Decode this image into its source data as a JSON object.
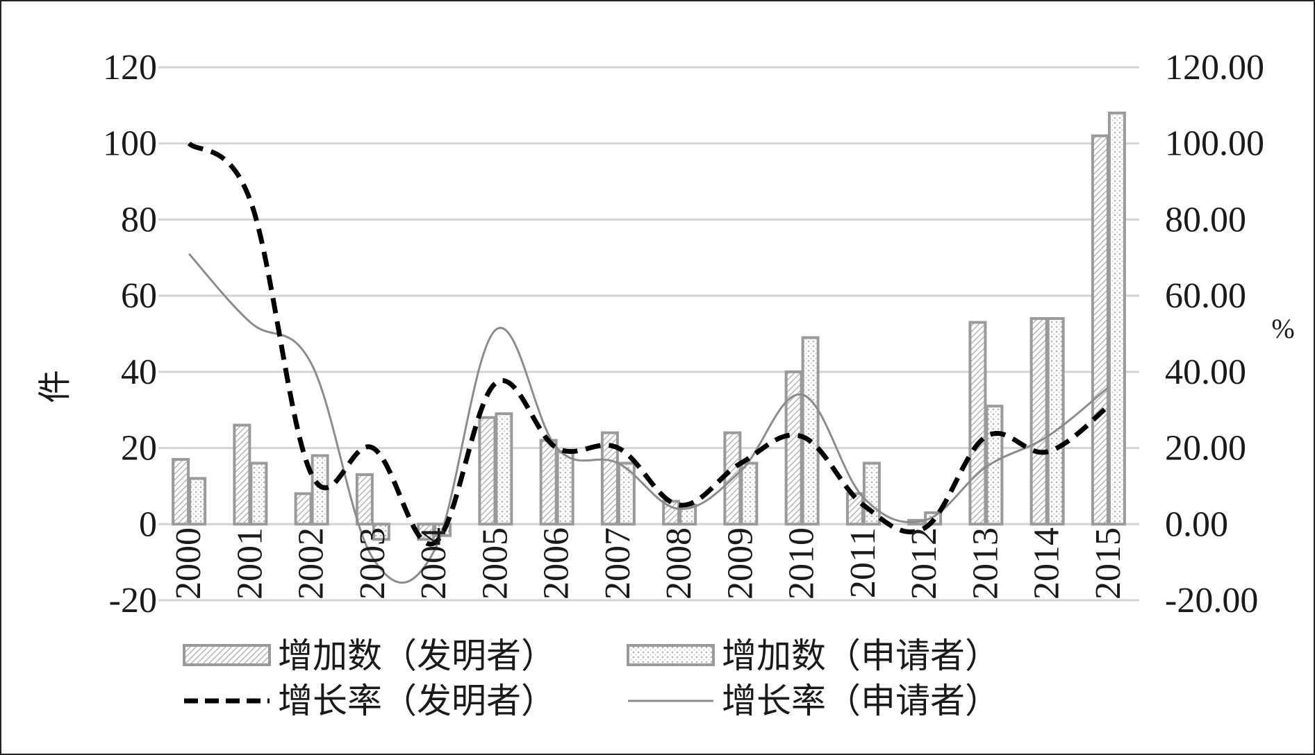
{
  "chart_data": {
    "type": "bar",
    "categories": [
      "2000",
      "2001",
      "2002",
      "2003",
      "2004",
      "2005",
      "2006",
      "2007",
      "2008",
      "2009",
      "2010",
      "2011",
      "2012",
      "2013",
      "2014",
      "2015"
    ],
    "y_left": {
      "label": "件",
      "min": -20,
      "max": 120,
      "ticks": [
        "120",
        "100",
        "80",
        "60",
        "40",
        "20",
        "0",
        "-20"
      ]
    },
    "y_right": {
      "label": "%",
      "min": -20,
      "max": 120,
      "ticks": [
        "120.00",
        "100.00",
        "80.00",
        "60.00",
        "40.00",
        "20.00",
        "0.00",
        "-20.00"
      ]
    },
    "grid": true,
    "legend_position": "bottom",
    "series": [
      {
        "name": "增加数（发明者）",
        "kind": "bar",
        "axis": "left",
        "pattern": "hatch-dense",
        "values": [
          17,
          26,
          8,
          13,
          -4,
          28,
          22,
          24,
          6,
          24,
          40,
          8,
          1,
          53,
          54,
          102
        ]
      },
      {
        "name": "增加数（申请者）",
        "kind": "bar",
        "axis": "left",
        "pattern": "dots",
        "values": [
          12,
          16,
          18,
          -4,
          -3,
          29,
          19,
          16,
          5,
          16,
          49,
          16,
          3,
          31,
          54,
          108
        ]
      },
      {
        "name": "增长率（发明者）",
        "kind": "line",
        "axis": "right",
        "style": "dashed",
        "values": [
          100,
          85,
          13,
          20,
          -5,
          37,
          20,
          20,
          5,
          16,
          23,
          5,
          -1,
          23,
          19,
          31
        ]
      },
      {
        "name": "增长率（申请者）",
        "kind": "line",
        "axis": "right",
        "style": "solid",
        "values": [
          71,
          53,
          42,
          -9,
          -7,
          51,
          20,
          16,
          4,
          14,
          34,
          7,
          1,
          15,
          23,
          36
        ]
      }
    ],
    "colors": {
      "bar_border": "#9a9a9a",
      "bar_hatch": "#bdbdbd",
      "line_inventor": "#000000",
      "line_applicant": "#8c8c8c",
      "grid": "#d4d4d4"
    }
  }
}
